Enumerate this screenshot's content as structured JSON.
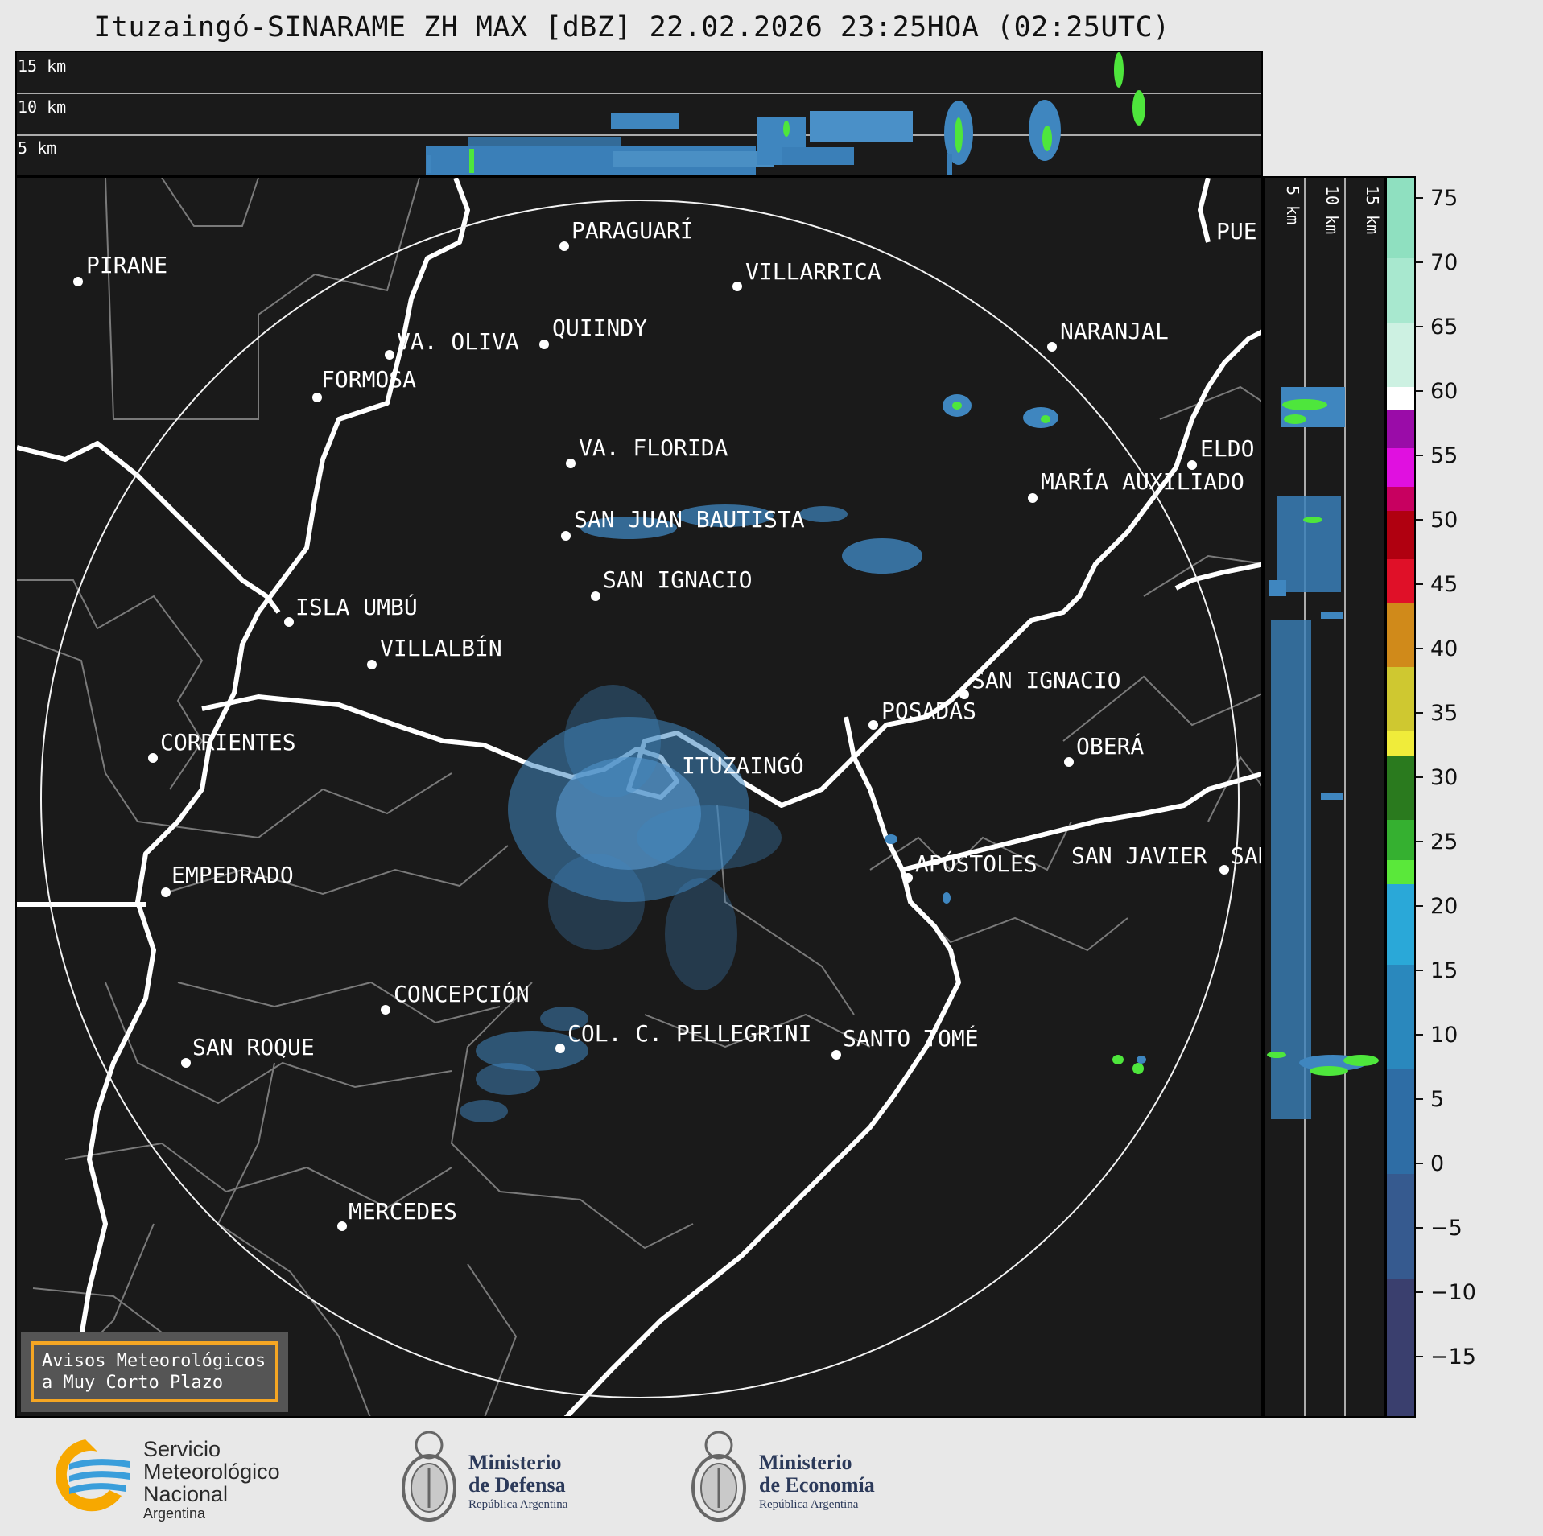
{
  "title": "Ituzaingó-SINARAME ZH MAX [dBZ] 22.02.2026 23:25HOA (02:25UTC)",
  "top_panel": {
    "height_labels": [
      "15 km",
      "10 km",
      "5 km"
    ]
  },
  "side_panel": {
    "height_labels": [
      "5 km",
      "10 km",
      "15 km"
    ]
  },
  "colorbar": {
    "ticks": [
      "75",
      "70",
      "65",
      "60",
      "55",
      "50",
      "45",
      "40",
      "35",
      "30",
      "25",
      "20",
      "15",
      "10",
      "5",
      "0",
      "−5",
      "−10",
      "−15"
    ]
  },
  "places": {
    "pirane": "PIRANE",
    "paraguari": "PARAGUARÍ",
    "villarrica": "VILLARRICA",
    "quiindy": "QUIINDY",
    "va_oliva": "VA. OLIVA",
    "naranjal": "NARANJAL",
    "formosa": "FORMOSA",
    "puerto": "PUE",
    "eldorado": "ELDO",
    "maria_auxiliadora": "MARÍA AUXILIADO",
    "va_florida": "VA. FLORIDA",
    "san_juan_bautista": "SAN JUAN BAUTISTA",
    "san_ignacio_py": "SAN IGNACIO",
    "isla_umbu": "ISLA UMBÚ",
    "villalbin": "VILLALBÍN",
    "san_ignacio_ar": "SAN IGNACIO",
    "posadas": "POSADAS",
    "corrientes": "CORRIENTES",
    "ituzaingo": "ITUZAINGÓ",
    "obera": "OBERÁ",
    "empedrado": "EMPEDRADO",
    "apostoles": "APÓSTOLES",
    "san_javier": "SAN JAVIER",
    "san_edge": "SAN",
    "concepcion": "CONCEPCIÓN",
    "col_pellegrini": "COL. C. PELLEGRINI",
    "santo_tome": "SANTO TOMÉ",
    "san_roque": "SAN ROQUE",
    "mercedes": "MERCEDES"
  },
  "alert_box": {
    "line1": "Avisos Meteorológicos",
    "line2": "a Muy Corto Plazo"
  },
  "footer": {
    "smn": {
      "line1": "Servicio",
      "line2": "Meteorológico",
      "line3": "Nacional",
      "line4": "Argentina"
    },
    "defensa": {
      "line1": "Ministerio",
      "line2": "de Defensa",
      "line3": "República Argentina"
    },
    "economia": {
      "line1": "Ministerio",
      "line2": "de Economía",
      "line3": "República Argentina"
    }
  },
  "colors": {
    "panel_bg": "#1a1a1a",
    "echo_blue": "#3f86bf",
    "echo_green": "#4ee63c",
    "alert_border": "#f5a623",
    "page_bg": "#e8e8e8"
  }
}
